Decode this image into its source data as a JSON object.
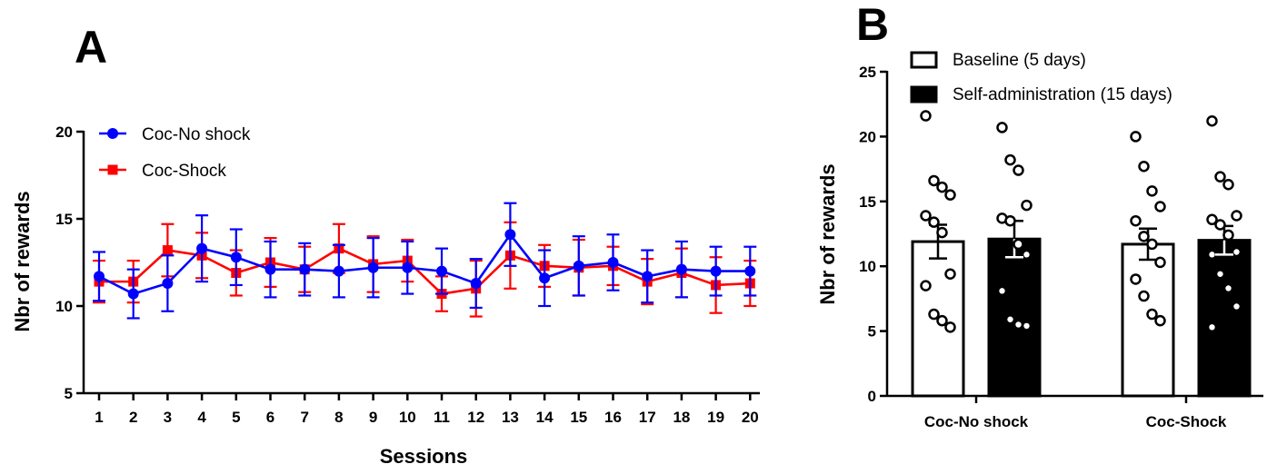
{
  "chart_data": [
    {
      "panel_label": "A",
      "type": "line",
      "xlabel": "Sessions",
      "ylabel": "Nbr of rewards",
      "xlim": [
        1,
        20
      ],
      "ylim": [
        5,
        20
      ],
      "yticks": [
        5,
        10,
        15,
        20
      ],
      "x": [
        1,
        2,
        3,
        4,
        5,
        6,
        7,
        8,
        9,
        10,
        11,
        12,
        13,
        14,
        15,
        16,
        17,
        18,
        19,
        20
      ],
      "legend_position": "top-left",
      "series": [
        {
          "name": "Coc-No shock",
          "color": "#0000ff",
          "marker": "circle",
          "values": [
            11.7,
            10.7,
            11.3,
            13.3,
            12.8,
            12.1,
            12.1,
            12.0,
            12.2,
            12.2,
            12.0,
            11.3,
            14.1,
            11.6,
            12.3,
            12.5,
            11.7,
            12.1,
            12.0,
            12.0
          ],
          "errors": [
            1.4,
            1.4,
            1.6,
            1.9,
            1.6,
            1.6,
            1.5,
            1.5,
            1.7,
            1.5,
            1.3,
            1.4,
            1.8,
            1.6,
            1.7,
            1.6,
            1.5,
            1.6,
            1.4,
            1.4
          ]
        },
        {
          "name": "Coc-Shock",
          "color": "#ff0000",
          "marker": "square",
          "values": [
            11.4,
            11.4,
            13.2,
            12.9,
            11.9,
            12.5,
            12.1,
            13.3,
            12.4,
            12.6,
            10.7,
            11.0,
            12.9,
            12.3,
            12.2,
            12.3,
            11.4,
            11.9,
            11.2,
            11.3
          ],
          "errors": [
            1.2,
            1.2,
            1.5,
            1.3,
            1.3,
            1.4,
            1.3,
            1.4,
            1.6,
            1.2,
            1.0,
            1.6,
            1.9,
            1.2,
            1.6,
            1.1,
            1.3,
            1.4,
            1.6,
            1.3
          ]
        }
      ]
    },
    {
      "panel_label": "B",
      "type": "bar",
      "xlabel": "",
      "ylabel": "Nbr of rewards",
      "ylim": [
        0,
        25
      ],
      "yticks": [
        0,
        5,
        10,
        15,
        20,
        25
      ],
      "categories": [
        "Coc-No shock",
        "Coc-Shock"
      ],
      "legend_position": "top-left",
      "series": [
        {
          "name": "Baseline (5 days)",
          "fill": "#ffffff",
          "values": [
            11.9,
            11.7
          ],
          "errors": [
            1.3,
            1.2
          ],
          "points": [
            [
              21.6,
              16.6,
              16.1,
              15.5,
              13.9,
              13.4,
              12.6,
              9.4,
              8.5,
              6.3,
              5.8,
              5.3
            ],
            [
              20.0,
              17.7,
              15.8,
              14.6,
              13.5,
              12.3,
              11.7,
              10.3,
              9.0,
              7.7,
              6.3,
              5.8
            ]
          ]
        },
        {
          "name": "Self-administration (15 days)",
          "fill": "#000000",
          "values": [
            12.1,
            12.0
          ],
          "errors": [
            1.4,
            1.1
          ],
          "points": [
            [
              20.7,
              18.2,
              17.4,
              14.7,
              13.7,
              13.5,
              11.7,
              10.9,
              8.1,
              5.9,
              5.5,
              5.4
            ],
            [
              21.2,
              16.9,
              16.3,
              13.9,
              13.6,
              13.2,
              12.4,
              11.1,
              10.9,
              9.4,
              8.3,
              6.9,
              5.3
            ]
          ]
        }
      ]
    }
  ]
}
